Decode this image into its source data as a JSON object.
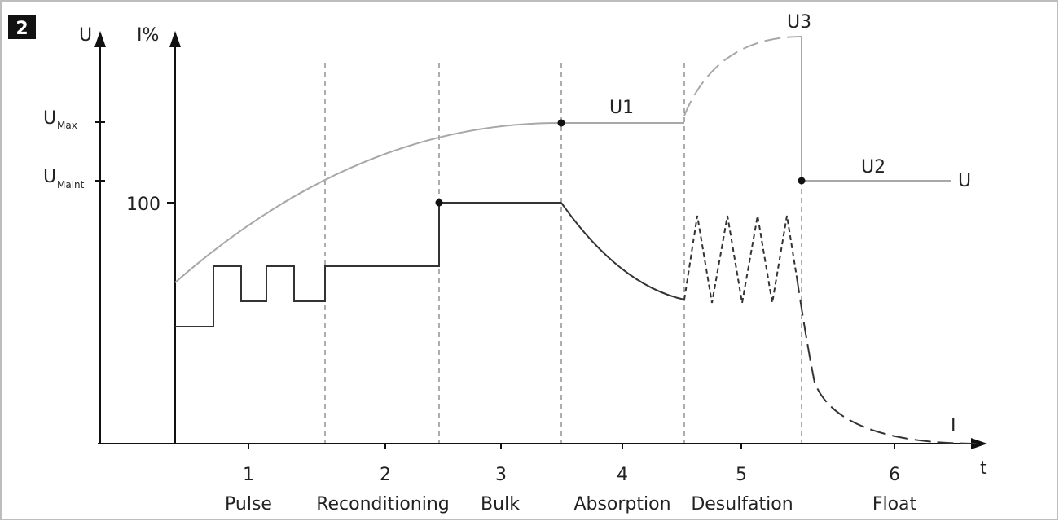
{
  "figure_number": "2",
  "axes": {
    "u_axis_label": "U",
    "i_axis_label": "I%",
    "time_axis_label": "t",
    "u_max": {
      "main": "U",
      "sub": "Max"
    },
    "u_maint": {
      "main": "U",
      "sub": "Maint"
    },
    "i_100_label": "100"
  },
  "curve_labels": {
    "u1": "U1",
    "u2": "U2",
    "u3": "U3",
    "voltage": "U",
    "current": "I"
  },
  "phases": [
    {
      "number": "1",
      "name": "Pulse"
    },
    {
      "number": "2",
      "name": "Reconditioning"
    },
    {
      "number": "3",
      "name": "Bulk"
    },
    {
      "number": "4",
      "name": "Absorption"
    },
    {
      "number": "5",
      "name": "Desulfation"
    },
    {
      "number": "6",
      "name": "Float"
    }
  ],
  "colors": {
    "voltage_curve": "#a8a8a8",
    "current_curve": "#333333",
    "axis": "#111111",
    "badge": "#111111"
  }
}
